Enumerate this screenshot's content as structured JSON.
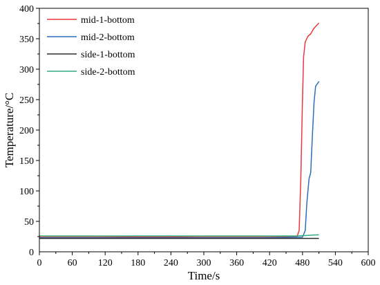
{
  "chart_data": {
    "type": "line",
    "xlabel": "Time/s",
    "ylabel": "Temperature/°C",
    "xlim": [
      0,
      600
    ],
    "ylim": [
      0,
      400
    ],
    "xticks": [
      0,
      60,
      120,
      180,
      240,
      300,
      360,
      420,
      480,
      540,
      600
    ],
    "yticks": [
      50,
      100,
      150,
      200,
      250,
      300,
      350,
      400
    ],
    "y_zero_label": "0",
    "grid": false,
    "legend_position": "top-left",
    "series": [
      {
        "name": "mid-1-bottom",
        "color": "#e8383d",
        "points": [
          [
            0,
            25
          ],
          [
            100,
            25
          ],
          [
            200,
            24.5
          ],
          [
            300,
            25
          ],
          [
            400,
            25
          ],
          [
            470,
            25
          ],
          [
            474,
            35
          ],
          [
            477,
            120
          ],
          [
            480,
            250
          ],
          [
            482,
            320
          ],
          [
            485,
            345
          ],
          [
            490,
            354
          ],
          [
            495,
            358
          ],
          [
            500,
            366
          ],
          [
            505,
            371
          ],
          [
            510,
            376
          ]
        ]
      },
      {
        "name": "mid-2-bottom",
        "color": "#2a6ebb",
        "points": [
          [
            0,
            23
          ],
          [
            100,
            23
          ],
          [
            200,
            23
          ],
          [
            300,
            23
          ],
          [
            400,
            23
          ],
          [
            480,
            24
          ],
          [
            485,
            35
          ],
          [
            488,
            80
          ],
          [
            492,
            120
          ],
          [
            495,
            130
          ],
          [
            498,
            190
          ],
          [
            501,
            245
          ],
          [
            504,
            272
          ],
          [
            508,
            277
          ],
          [
            510,
            280
          ]
        ]
      },
      {
        "name": "side-1-bottom",
        "color": "#2b2b2b",
        "points": [
          [
            0,
            22
          ],
          [
            100,
            22
          ],
          [
            200,
            22
          ],
          [
            300,
            22
          ],
          [
            400,
            22
          ],
          [
            480,
            22
          ],
          [
            510,
            22
          ]
        ]
      },
      {
        "name": "side-2-bottom",
        "color": "#2fae7f",
        "points": [
          [
            0,
            26
          ],
          [
            100,
            26
          ],
          [
            200,
            26
          ],
          [
            300,
            26
          ],
          [
            400,
            26
          ],
          [
            470,
            26
          ],
          [
            490,
            27
          ],
          [
            510,
            28
          ]
        ]
      }
    ]
  }
}
